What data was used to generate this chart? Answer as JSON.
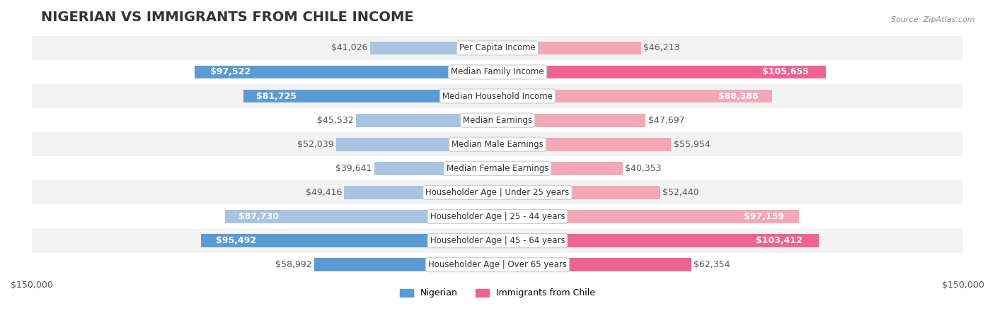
{
  "title": "NIGERIAN VS IMMIGRANTS FROM CHILE INCOME",
  "source": "Source: ZipAtlas.com",
  "categories": [
    "Per Capita Income",
    "Median Family Income",
    "Median Household Income",
    "Median Earnings",
    "Median Male Earnings",
    "Median Female Earnings",
    "Householder Age | Under 25 years",
    "Householder Age | 25 - 44 years",
    "Householder Age | 45 - 64 years",
    "Householder Age | Over 65 years"
  ],
  "nigerian_values": [
    41026,
    97522,
    81725,
    45532,
    52039,
    39641,
    49416,
    87730,
    95492,
    58992
  ],
  "chile_values": [
    46213,
    105655,
    88388,
    47697,
    55954,
    40353,
    52440,
    97159,
    103412,
    62354
  ],
  "nigerian_labels": [
    "$41,026",
    "$97,522",
    "$81,725",
    "$45,532",
    "$52,039",
    "$39,641",
    "$49,416",
    "$87,730",
    "$95,492",
    "$58,992"
  ],
  "chile_labels": [
    "$46,213",
    "$105,655",
    "$88,388",
    "$47,697",
    "$55,954",
    "$40,353",
    "$52,440",
    "$97,159",
    "$103,412",
    "$62,354"
  ],
  "nigerian_color_normal": "#a8c4e0",
  "nigerian_color_highlight": "#5b9bd5",
  "chile_color_normal": "#f4a7b9",
  "chile_color_highlight": "#f06292",
  "nigerian_highlight": [
    1,
    2,
    8,
    9
  ],
  "chile_highlight": [
    1,
    8,
    9
  ],
  "max_value": 150000,
  "bar_height": 0.55,
  "bg_row_color": "#f2f2f2",
  "bg_alt_color": "#ffffff",
  "label_inside_threshold": 70000,
  "title_fontsize": 14,
  "label_fontsize": 9,
  "axis_fontsize": 9
}
